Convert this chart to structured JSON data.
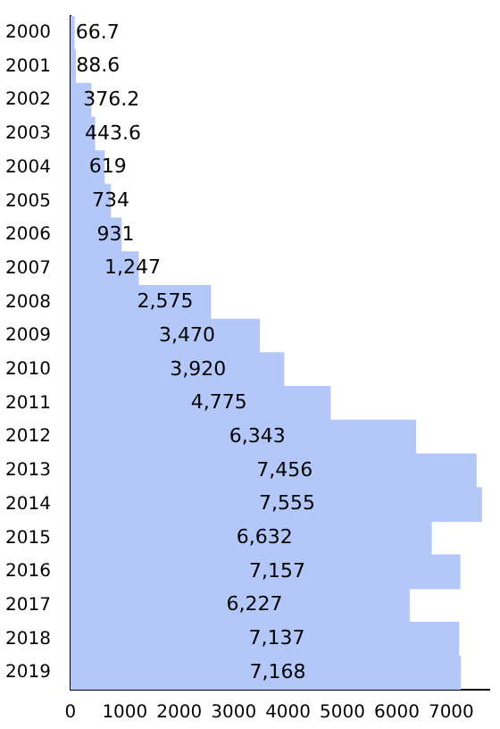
{
  "chart_data": {
    "type": "bar",
    "orientation": "horizontal",
    "categories": [
      "2000",
      "2001",
      "2002",
      "2003",
      "2004",
      "2005",
      "2006",
      "2007",
      "2008",
      "2009",
      "2010",
      "2011",
      "2012",
      "2013",
      "2014",
      "2015",
      "2016",
      "2017",
      "2018",
      "2019"
    ],
    "values": [
      66.7,
      88.6,
      376.2,
      443.6,
      619,
      734,
      931,
      1247,
      2575,
      3470,
      3920,
      4775,
      6343,
      7456,
      7555,
      6632,
      7157,
      6227,
      7137,
      7168
    ],
    "value_labels": [
      "66.7",
      "88.6",
      "376.2",
      "443.6",
      "619",
      "734",
      "931",
      "1,247",
      "2,575",
      "3,470",
      "3,920",
      "4,775",
      "6,343",
      "7,456",
      "7,555",
      "6,632",
      "7,157",
      "6,227",
      "7,137",
      "7,168"
    ],
    "color": "#b3c8f8",
    "xlim": [
      0,
      7700
    ],
    "xticks": [
      0,
      1000,
      2000,
      3000,
      4000,
      5000,
      6000,
      7000
    ],
    "grid": false,
    "legend": false
  }
}
